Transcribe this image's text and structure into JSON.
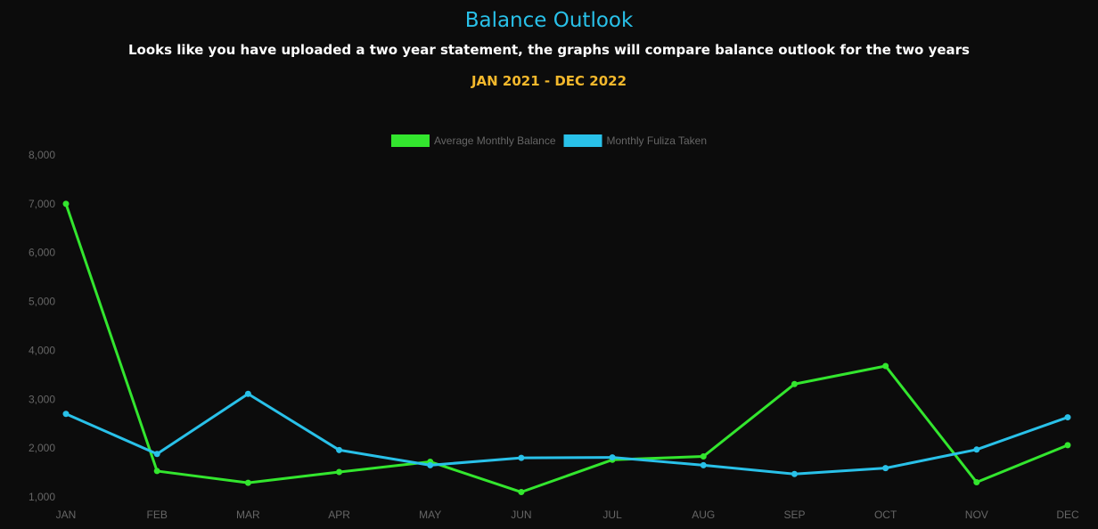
{
  "header": {
    "title": "Balance Outlook",
    "subtitle": "Looks like you have uploaded a two year statement, the graphs will compare balance outlook for the two years",
    "date_range": "JAN 2021 - DEC 2022"
  },
  "colors": {
    "title": "#29c1e9",
    "subtitle": "#ffffff",
    "date_range": "#f3b82c",
    "background": "#0c0c0c",
    "tick_text": "#666666"
  },
  "chart_data": {
    "type": "line",
    "title": "",
    "xlabel": "",
    "ylabel": "",
    "categories": [
      "JAN",
      "FEB",
      "MAR",
      "APR",
      "MAY",
      "JUN",
      "JUL",
      "AUG",
      "SEP",
      "OCT",
      "NOV",
      "DEC"
    ],
    "ylim": [
      1000,
      8000
    ],
    "yticks": [
      1000,
      2000,
      3000,
      4000,
      5000,
      6000,
      7000,
      8000
    ],
    "ytick_labels": [
      "1,000",
      "2,000",
      "3,000",
      "4,000",
      "5,000",
      "6,000",
      "7,000",
      "8,000"
    ],
    "grid": false,
    "legend_position": "top-center",
    "series": [
      {
        "name": "Average Monthly Balance",
        "color": "#33e62e",
        "values": [
          7000,
          1530,
          1290,
          1510,
          1720,
          1100,
          1760,
          1830,
          3310,
          3680,
          1300,
          2060
        ]
      },
      {
        "name": "Monthly Fuliza Taken",
        "color": "#29c1e9",
        "values": [
          2700,
          1880,
          3110,
          1960,
          1650,
          1800,
          1810,
          1650,
          1470,
          1590,
          1970,
          2630
        ]
      }
    ]
  }
}
